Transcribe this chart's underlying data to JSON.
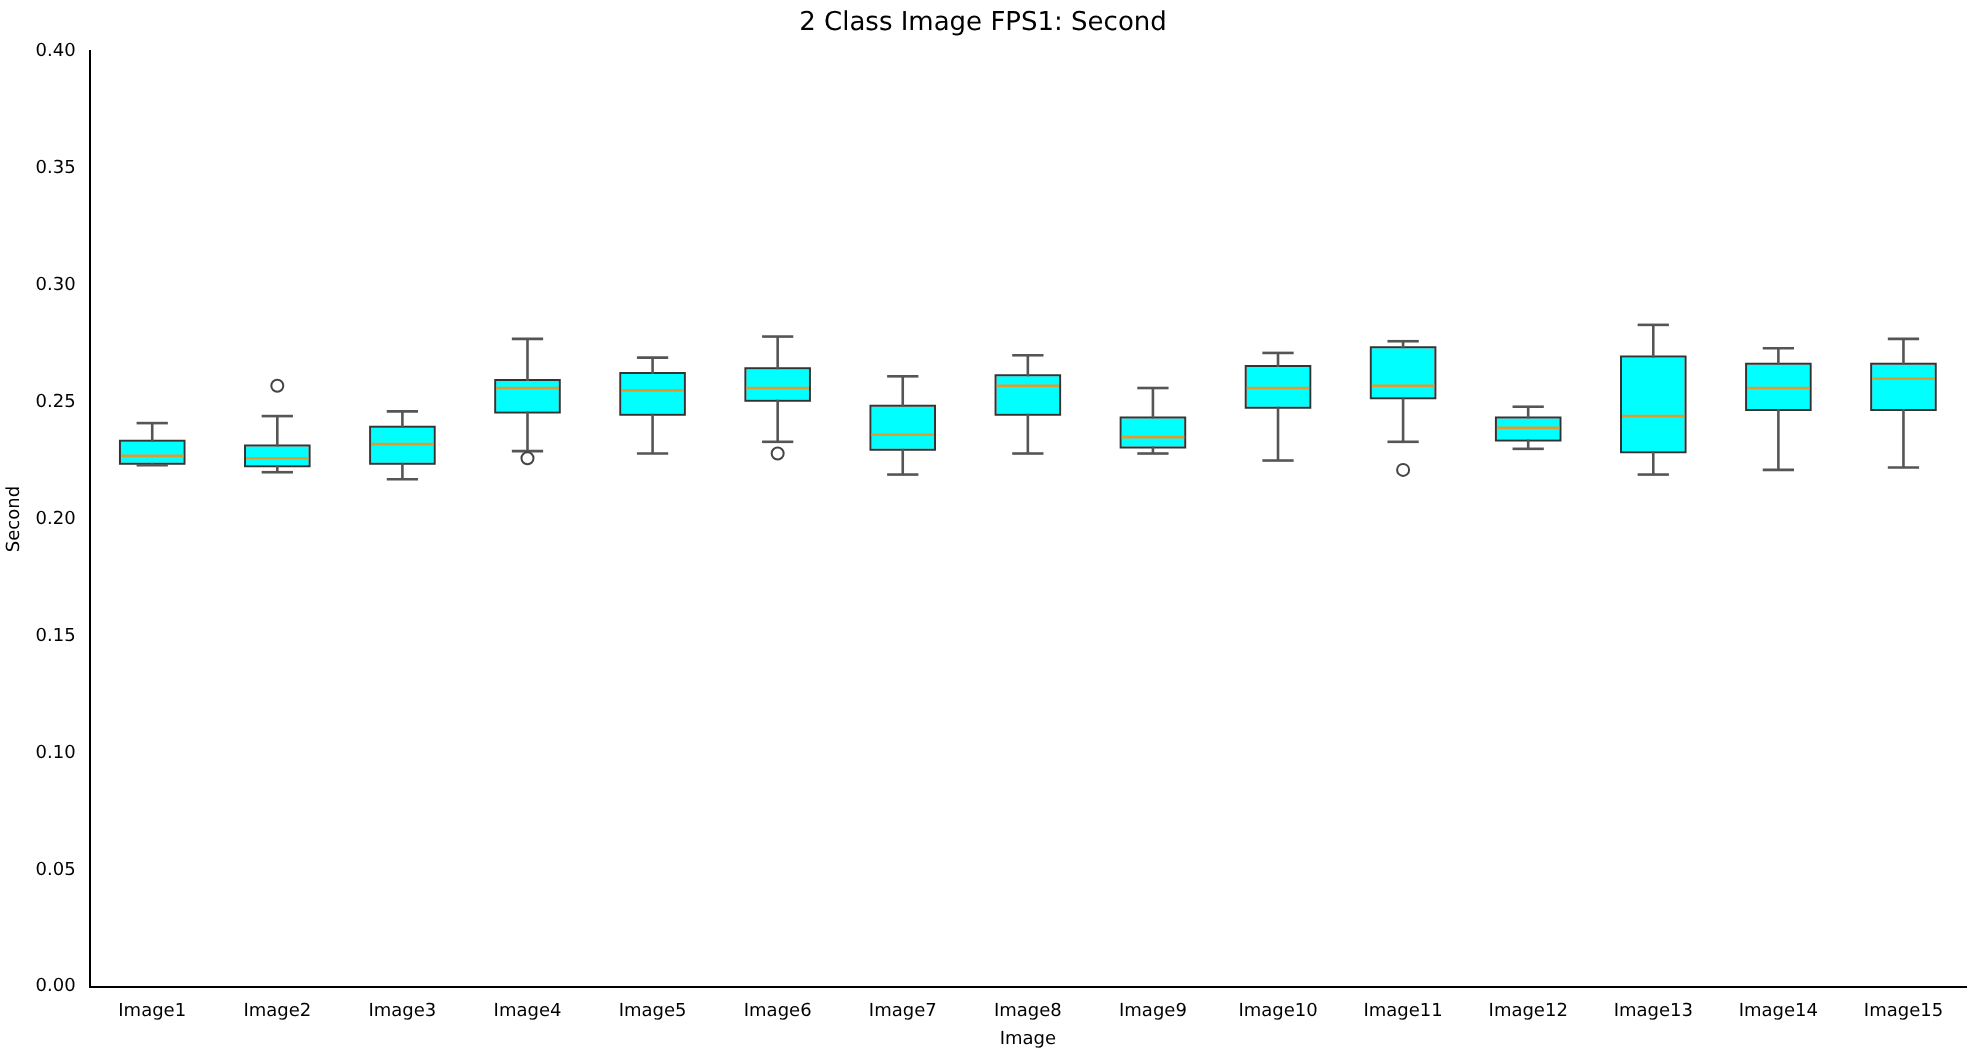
{
  "chart_data": {
    "type": "box",
    "title": "2 Class Image FPS1: Second",
    "xlabel": "Image",
    "ylabel": "Second",
    "categories": [
      "Image1",
      "Image2",
      "Image3",
      "Image4",
      "Image5",
      "Image6",
      "Image7",
      "Image8",
      "Image9",
      "Image10",
      "Image11",
      "Image12",
      "Image13",
      "Image14",
      "Image15"
    ],
    "color": "#00ffff",
    "boxes": [
      {
        "low": 0.223,
        "q1": 0.224,
        "median": 0.227,
        "q3": 0.233,
        "high": 0.241
      },
      {
        "low": 0.22,
        "q1": 0.223,
        "median": 0.226,
        "q3": 0.231,
        "high": 0.244,
        "outliers": [
          0.257
        ]
      },
      {
        "low": 0.217,
        "q1": 0.224,
        "median": 0.232,
        "q3": 0.239,
        "high": 0.246
      },
      {
        "low": 0.229,
        "q1": 0.246,
        "median": 0.256,
        "q3": 0.259,
        "high": 0.277,
        "outliers": [
          0.226
        ]
      },
      {
        "low": 0.228,
        "q1": 0.245,
        "median": 0.255,
        "q3": 0.262,
        "high": 0.269
      },
      {
        "low": 0.233,
        "q1": 0.251,
        "median": 0.256,
        "q3": 0.264,
        "high": 0.278,
        "outliers": [
          0.228
        ]
      },
      {
        "low": 0.219,
        "q1": 0.23,
        "median": 0.236,
        "q3": 0.248,
        "high": 0.261
      },
      {
        "low": 0.228,
        "q1": 0.245,
        "median": 0.257,
        "q3": 0.261,
        "high": 0.27
      },
      {
        "low": 0.228,
        "q1": 0.231,
        "median": 0.235,
        "q3": 0.243,
        "high": 0.256
      },
      {
        "low": 0.225,
        "q1": 0.248,
        "median": 0.256,
        "q3": 0.265,
        "high": 0.271
      },
      {
        "low": 0.233,
        "q1": 0.252,
        "median": 0.257,
        "q3": 0.273,
        "high": 0.276,
        "outliers": [
          0.221
        ]
      },
      {
        "low": 0.23,
        "q1": 0.234,
        "median": 0.239,
        "q3": 0.243,
        "high": 0.248
      },
      {
        "low": 0.219,
        "q1": 0.229,
        "median": 0.244,
        "q3": 0.269,
        "high": 0.283
      },
      {
        "low": 0.221,
        "q1": 0.247,
        "median": 0.256,
        "q3": 0.266,
        "high": 0.273
      },
      {
        "low": 0.222,
        "q1": 0.247,
        "median": 0.26,
        "q3": 0.266,
        "high": 0.277
      }
    ],
    "ylim": [
      0,
      0.4
    ],
    "yticks": [
      {
        "value": 0,
        "label": "0.00"
      },
      {
        "value": 0.05,
        "label": "0.05"
      },
      {
        "value": 0.1,
        "label": "0.10"
      },
      {
        "value": 0.15,
        "label": "0.15"
      },
      {
        "value": 0.2,
        "label": "0.20"
      },
      {
        "value": 0.25,
        "label": "0.25"
      },
      {
        "value": 0.3,
        "label": "0.30"
      },
      {
        "value": 0.35,
        "label": "0.35"
      },
      {
        "value": 0.4,
        "label": "0.40"
      }
    ],
    "grid": false,
    "legend": false
  }
}
